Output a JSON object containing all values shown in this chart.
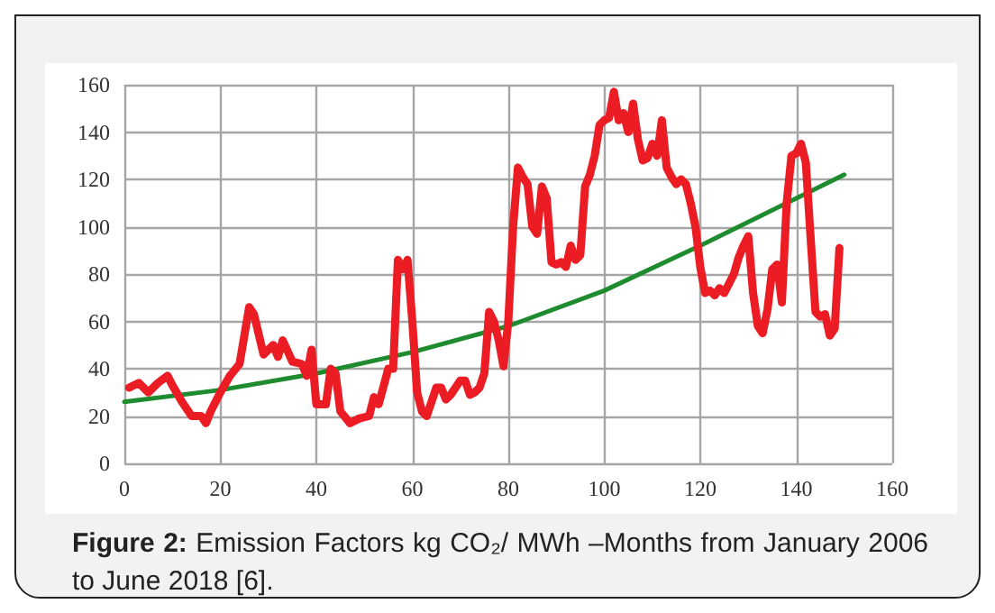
{
  "chart_data": {
    "type": "line",
    "annotations": [
      "Figure 2: Emission Factors kg CO₂/ MWh –Months from January 2006 to June 2018 [6]."
    ],
    "xlim": [
      0,
      160
    ],
    "xticks": [
      0,
      20,
      40,
      60,
      80,
      100,
      120,
      140,
      160
    ],
    "ylim": [
      0,
      160
    ],
    "yticks": [
      0,
      20,
      40,
      60,
      80,
      100,
      120,
      140,
      160
    ],
    "grid": true,
    "marker": "none",
    "line_style": "solid",
    "series": [
      {
        "color": "#ec1c24",
        "x": [
          1,
          3,
          5,
          7,
          9,
          10,
          12,
          14,
          16,
          17,
          18,
          20,
          22,
          24,
          26,
          27,
          29,
          31,
          32,
          33,
          35,
          37,
          38,
          39,
          40,
          42,
          43,
          44,
          45,
          47,
          49,
          51,
          52,
          53,
          55,
          56,
          57,
          58,
          59,
          60,
          61,
          62,
          63,
          64,
          65,
          66,
          67,
          68,
          69,
          70,
          71,
          72,
          73,
          74,
          75,
          76,
          77,
          78,
          79,
          80,
          81,
          82,
          83,
          84,
          85,
          86,
          87,
          88,
          89,
          90,
          91,
          92,
          93,
          94,
          95,
          96,
          97,
          98,
          99,
          100,
          101,
          102,
          103,
          104,
          105,
          106,
          107,
          108,
          109,
          110,
          111,
          112,
          113,
          114,
          115,
          116,
          117,
          118,
          119,
          120,
          121,
          122,
          123,
          124,
          125,
          126,
          127,
          128,
          129,
          130,
          131,
          132,
          133,
          134,
          135,
          136,
          137,
          138,
          139,
          140,
          141,
          142,
          143,
          144,
          145,
          146,
          147,
          148,
          149
        ],
        "values": [
          32,
          34,
          30,
          34,
          37,
          33,
          26,
          20,
          20,
          17,
          22,
          30,
          37,
          42,
          66,
          63,
          46,
          50,
          45,
          52,
          43,
          42,
          37,
          48,
          25,
          25,
          40,
          38,
          22,
          17,
          19,
          20,
          28,
          25,
          40,
          40,
          86,
          82,
          86,
          60,
          30,
          22,
          20,
          26,
          32,
          32,
          27,
          29,
          32,
          35,
          35,
          29,
          30,
          32,
          38,
          64,
          60,
          52,
          41,
          60,
          100,
          125,
          121,
          118,
          100,
          97,
          117,
          112,
          85,
          84,
          85,
          83,
          92,
          86,
          88,
          117,
          122,
          130,
          143,
          145,
          146,
          157,
          145,
          148,
          140,
          152,
          137,
          128,
          129,
          135,
          130,
          145,
          125,
          121,
          118,
          120,
          118,
          110,
          100,
          83,
          72,
          73,
          71,
          74,
          72,
          76,
          80,
          87,
          92,
          96,
          72,
          58,
          55,
          65,
          82,
          84,
          68,
          110,
          130,
          131,
          135,
          127,
          95,
          64,
          62,
          63,
          54,
          57,
          91
        ]
      },
      {
        "color": "#1e8c2e",
        "x": [
          0,
          20,
          40,
          60,
          80,
          100,
          120,
          140,
          150
        ],
        "values": [
          26,
          31,
          38,
          47,
          58,
          73,
          92,
          112,
          122
        ]
      }
    ]
  }
}
